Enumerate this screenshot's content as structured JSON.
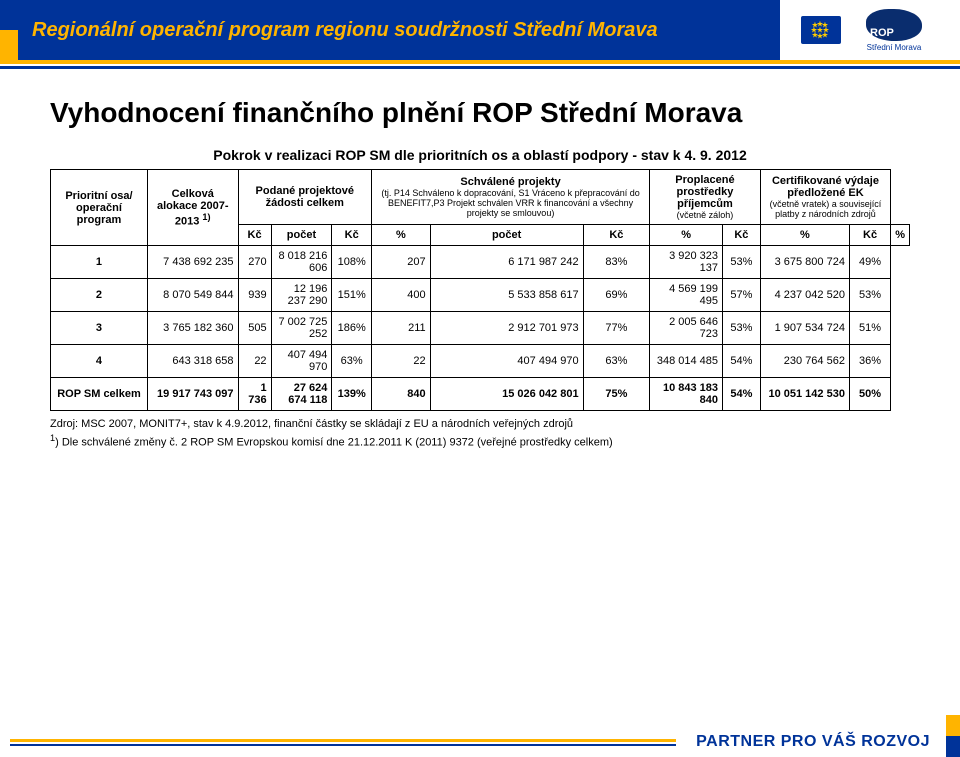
{
  "colors": {
    "blue": "#003399",
    "yellow": "#ffb400",
    "deepnavy": "#0a2d6e"
  },
  "header": {
    "program_title": "Regionální operační program regionu soudržnosti Střední Morava",
    "rop_label": "ROP",
    "rop_sub": "Střední Morava"
  },
  "page": {
    "title": "Vyhodnocení finančního plnění ROP Střední Morava",
    "subtitle": "Pokrok v realizaci ROP SM dle prioritních os a oblastí podpory - stav k 4. 9. 2012"
  },
  "table": {
    "col_headers": {
      "axis": "Prioritní osa/ operační program",
      "alloc": "Celková alokace 2007-2013 ",
      "alloc_sup": "1)",
      "requests": "Podané projektové žádosti celkem",
      "approved": "Schválené projekty",
      "approved_sub": "(tj. P14 Schváleno k dopracování, S1 Vráceno k přepracování do BENEFIT7,P3 Projekt schválen VRR k financování a všechny projekty se smlouvou)",
      "paid": "Proplacené prostředky příjemcům",
      "paid_sub": "(včetně záloh)",
      "cert": "Certifikované výdaje předložené EK",
      "cert_sub": "(včetně vratek) a související platby z národních zdrojů"
    },
    "unit_row": {
      "kc": "Kč",
      "count": "počet",
      "pct": "%"
    },
    "rows": [
      {
        "axis": "1",
        "alloc": "7 438 692 235",
        "req_n": "270",
        "req_kc": "8 018 216 606",
        "req_pct": "108%",
        "app_n": "207",
        "app_kc": "6 171 987 242",
        "app_pct": "83%",
        "paid_kc": "3 920 323 137",
        "paid_pct": "53%",
        "cert_kc": "3 675 800 724",
        "cert_pct": "49%"
      },
      {
        "axis": "2",
        "alloc": "8 070 549 844",
        "req_n": "939",
        "req_kc": "12 196 237 290",
        "req_pct": "151%",
        "app_n": "400",
        "app_kc": "5 533 858 617",
        "app_pct": "69%",
        "paid_kc": "4 569 199 495",
        "paid_pct": "57%",
        "cert_kc": "4 237 042 520",
        "cert_pct": "53%"
      },
      {
        "axis": "3",
        "alloc": "3 765 182 360",
        "req_n": "505",
        "req_kc": "7 002 725 252",
        "req_pct": "186%",
        "app_n": "211",
        "app_kc": "2 912 701 973",
        "app_pct": "77%",
        "paid_kc": "2 005 646 723",
        "paid_pct": "53%",
        "cert_kc": "1 907 534 724",
        "cert_pct": "51%"
      },
      {
        "axis": "4",
        "alloc": "643 318 658",
        "req_n": "22",
        "req_kc": "407 494 970",
        "req_pct": "63%",
        "app_n": "22",
        "app_kc": "407 494 970",
        "app_pct": "63%",
        "paid_kc": "348 014 485",
        "paid_pct": "54%",
        "cert_kc": "230 764 562",
        "cert_pct": "36%"
      }
    ],
    "summary": {
      "label": "ROP SM celkem",
      "alloc": "19 917 743 097",
      "req_n": "1 736",
      "req_kc": "27 624 674 118",
      "req_pct": "139%",
      "app_n": "840",
      "app_kc": "15 026 042 801",
      "app_pct": "75%",
      "paid_kc": "10 843 183 840",
      "paid_pct": "54%",
      "cert_kc": "10 051 142 530",
      "cert_pct": "50%"
    }
  },
  "footnotes": {
    "f1": "Zdroj: MSC 2007, MONIT7+, stav k 4.9.2012, finanční částky se skládají z EU a národních veřejných zdrojů",
    "f2_sup": "1",
    "f2": ") Dle schválené změny č. 2 ROP SM Evropskou komisí dne 21.12.2011 K (2011) 9372  (veřejné prostředky celkem)"
  },
  "footer": {
    "partner": "PARTNER PRO VÁŠ ROZVOJ"
  }
}
